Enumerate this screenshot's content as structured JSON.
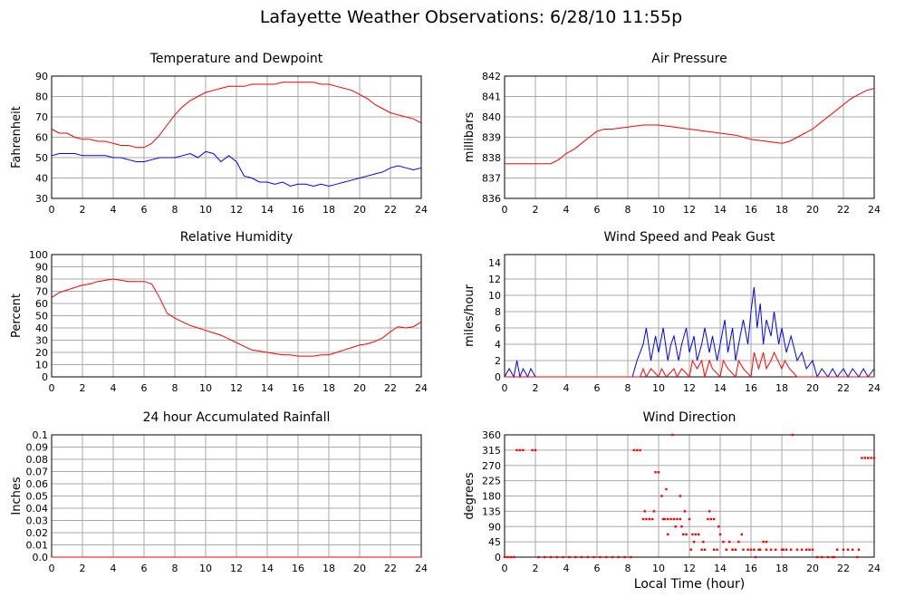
{
  "page": {
    "title": "Lafayette Weather Observations: 6/28/10 11:55p",
    "x_axis_label": "Local Time (hour)"
  },
  "colors": {
    "red": "#ff0000",
    "blue": "#0000ff",
    "grid": "#aaaaaa",
    "frame": "#000000"
  },
  "chart_data": [
    {
      "id": "temp",
      "type": "line",
      "title": "Temperature and Dewpoint",
      "xlabel": "",
      "ylabel": "Fahrenheit",
      "xlim": [
        0,
        24
      ],
      "ylim": [
        30,
        90
      ],
      "xticks": [
        0,
        2,
        4,
        6,
        8,
        10,
        12,
        14,
        16,
        18,
        20,
        22,
        24
      ],
      "yticks": [
        30,
        40,
        50,
        60,
        70,
        80,
        90
      ],
      "grid": true,
      "series": [
        {
          "color": "#ff0000",
          "x": [
            0,
            0.5,
            1,
            1.5,
            2,
            2.5,
            3,
            3.5,
            4,
            4.5,
            5,
            5.5,
            6,
            6.5,
            7,
            7.5,
            8,
            8.5,
            9,
            9.5,
            10,
            10.5,
            11,
            11.5,
            12,
            12.5,
            13,
            13.5,
            14,
            14.5,
            15,
            15.5,
            16,
            16.5,
            17,
            17.5,
            18,
            18.5,
            19,
            19.5,
            20,
            20.5,
            21,
            21.5,
            22,
            22.5,
            23,
            23.5,
            24
          ],
          "y": [
            64,
            62,
            62,
            60,
            59,
            59,
            58,
            58,
            57,
            56,
            56,
            55,
            55,
            57,
            61,
            66,
            71,
            75,
            78,
            80,
            82,
            83,
            84,
            85,
            85,
            85,
            86,
            86,
            86,
            86,
            87,
            87,
            87,
            87,
            87,
            86,
            86,
            85,
            84,
            83,
            81,
            79,
            76,
            74,
            72,
            71,
            70,
            69,
            67
          ]
        },
        {
          "color": "#0000ff",
          "x": [
            0,
            0.5,
            1,
            1.5,
            2,
            2.5,
            3,
            3.5,
            4,
            4.5,
            5,
            5.5,
            6,
            6.5,
            7,
            7.5,
            8,
            8.5,
            9,
            9.5,
            10,
            10.5,
            11,
            11.5,
            12,
            12.5,
            13,
            13.5,
            14,
            14.5,
            15,
            15.5,
            16,
            16.5,
            17,
            17.5,
            18,
            18.5,
            19,
            19.5,
            20,
            20.5,
            21,
            21.5,
            22,
            22.5,
            23,
            23.5,
            24
          ],
          "y": [
            51,
            52,
            52,
            52,
            51,
            51,
            51,
            51,
            50,
            50,
            49,
            48,
            48,
            49,
            50,
            50,
            50,
            51,
            52,
            50,
            53,
            52,
            48,
            51,
            48,
            41,
            40,
            38,
            38,
            37,
            38,
            36,
            37,
            37,
            36,
            37,
            36,
            37,
            38,
            39,
            40,
            41,
            42,
            43,
            45,
            46,
            45,
            44,
            45
          ]
        }
      ]
    },
    {
      "id": "pressure",
      "type": "line",
      "title": "Air Pressure",
      "xlabel": "",
      "ylabel": "millibars",
      "xlim": [
        0,
        24
      ],
      "ylim": [
        836,
        842
      ],
      "xticks": [
        0,
        2,
        4,
        6,
        8,
        10,
        12,
        14,
        16,
        18,
        20,
        22,
        24
      ],
      "yticks": [
        836,
        837,
        838,
        839,
        840,
        841,
        842
      ],
      "grid": true,
      "series": [
        {
          "color": "#ff0000",
          "x": [
            0,
            1,
            2,
            3,
            3.5,
            4,
            4.5,
            5,
            5.5,
            6,
            6.5,
            7,
            8,
            9,
            10,
            11,
            12,
            13,
            14,
            15,
            16,
            17,
            18,
            18.5,
            19,
            19.5,
            20,
            20.5,
            21,
            21.5,
            22,
            22.5,
            23,
            23.5,
            24
          ],
          "y": [
            837.7,
            837.7,
            837.7,
            837.7,
            837.9,
            838.2,
            838.4,
            838.7,
            839.0,
            839.3,
            839.4,
            839.4,
            839.5,
            839.6,
            839.6,
            839.5,
            839.4,
            839.3,
            839.2,
            839.1,
            838.9,
            838.8,
            838.7,
            838.8,
            839.0,
            839.2,
            839.4,
            839.7,
            840.0,
            840.3,
            840.6,
            840.9,
            841.1,
            841.3,
            841.4
          ]
        }
      ]
    },
    {
      "id": "humidity",
      "type": "line",
      "title": "Relative Humidity",
      "xlabel": "",
      "ylabel": "Percent",
      "xlim": [
        0,
        24
      ],
      "ylim": [
        0,
        100
      ],
      "xticks": [
        0,
        2,
        4,
        6,
        8,
        10,
        12,
        14,
        16,
        18,
        20,
        22,
        24
      ],
      "yticks": [
        0,
        10,
        20,
        30,
        40,
        50,
        60,
        70,
        80,
        90,
        100
      ],
      "grid": true,
      "series": [
        {
          "color": "#ff0000",
          "x": [
            0,
            0.5,
            1,
            1.5,
            2,
            2.5,
            3,
            3.5,
            4,
            4.5,
            5,
            5.5,
            6,
            6.5,
            7,
            7.5,
            8,
            8.5,
            9,
            9.5,
            10,
            10.5,
            11,
            11.5,
            12,
            12.5,
            13,
            13.5,
            14,
            14.5,
            15,
            15.5,
            16,
            16.5,
            17,
            17.5,
            18,
            18.5,
            19,
            19.5,
            20,
            20.5,
            21,
            21.5,
            22,
            22.5,
            23,
            23.5,
            24
          ],
          "y": [
            65,
            69,
            71,
            73,
            75,
            76,
            78,
            79,
            80,
            79,
            78,
            78,
            78,
            76,
            65,
            52,
            48,
            45,
            42,
            40,
            38,
            36,
            34,
            31,
            28,
            25,
            22,
            21,
            20,
            19,
            18,
            18,
            17,
            17,
            17,
            18,
            18,
            20,
            22,
            24,
            26,
            27,
            29,
            32,
            37,
            41,
            40,
            41,
            45
          ]
        }
      ]
    },
    {
      "id": "wind",
      "type": "line",
      "title": "Wind Speed and Peak Gust",
      "xlabel": "",
      "ylabel": "miles/hour",
      "xlim": [
        0,
        24
      ],
      "ylim": [
        0,
        15
      ],
      "xticks": [
        0,
        2,
        4,
        6,
        8,
        10,
        12,
        14,
        16,
        18,
        20,
        22,
        24
      ],
      "yticks": [
        0,
        2,
        4,
        6,
        8,
        10,
        12,
        14
      ],
      "grid": true,
      "series": [
        {
          "color": "#0000ff",
          "x": [
            0,
            0.3,
            0.6,
            0.8,
            1,
            1.2,
            1.5,
            1.7,
            2,
            2.2,
            8,
            8.3,
            8.6,
            9,
            9.2,
            9.5,
            9.8,
            10,
            10.3,
            10.6,
            10.8,
            11,
            11.3,
            11.5,
            11.8,
            12,
            12.3,
            12.5,
            12.8,
            13,
            13.3,
            13.5,
            13.8,
            14,
            14.3,
            14.5,
            14.8,
            15,
            15.3,
            15.5,
            15.8,
            16,
            16.2,
            16.4,
            16.6,
            16.8,
            17,
            17.3,
            17.5,
            17.8,
            18,
            18.3,
            18.6,
            19,
            19.3,
            19.6,
            20,
            20.3,
            20.6,
            21,
            21.3,
            21.6,
            22,
            22.3,
            22.6,
            23,
            23.3,
            23.6,
            24
          ],
          "y": [
            0,
            1,
            0,
            2,
            0,
            1,
            0,
            1,
            0,
            0,
            0,
            0,
            2,
            4,
            6,
            2,
            5,
            3,
            6,
            2,
            4,
            5,
            2,
            4,
            6,
            3,
            5,
            2,
            4,
            6,
            3,
            5,
            2,
            4,
            7,
            3,
            6,
            2,
            5,
            7,
            4,
            8,
            11,
            6,
            9,
            4,
            7,
            5,
            8,
            4,
            6,
            3,
            5,
            2,
            3,
            1,
            2,
            0,
            1,
            0,
            1,
            0,
            1,
            0,
            1,
            0,
            1,
            0,
            1
          ]
        },
        {
          "color": "#ff0000",
          "x": [
            0,
            8,
            8.8,
            9,
            9.2,
            9.5,
            10,
            10.2,
            10.5,
            11,
            11.2,
            11.5,
            12,
            12.2,
            12.5,
            12.8,
            13,
            13.3,
            13.5,
            14,
            14.2,
            14.5,
            15,
            15.2,
            15.5,
            16,
            16.2,
            16.5,
            16.8,
            17,
            17.3,
            17.5,
            18,
            18.2,
            18.5,
            19,
            24
          ],
          "y": [
            0,
            0,
            0,
            1,
            0,
            1,
            0,
            1,
            0,
            1,
            0,
            1,
            0,
            2,
            1,
            2,
            0,
            2,
            1,
            0,
            2,
            1,
            0,
            2,
            1,
            0,
            3,
            1,
            3,
            1,
            2,
            3,
            1,
            2,
            1,
            0,
            0
          ]
        }
      ]
    },
    {
      "id": "rain",
      "type": "line",
      "title": "24 hour Accumulated Rainfall",
      "xlabel": "",
      "ylabel": "Inches",
      "xlim": [
        0,
        24
      ],
      "ylim": [
        0,
        0.1
      ],
      "xticks": [
        0,
        2,
        4,
        6,
        8,
        10,
        12,
        14,
        16,
        18,
        20,
        22,
        24
      ],
      "yticks": [
        0.0,
        0.01,
        0.02,
        0.03,
        0.04,
        0.05,
        0.06,
        0.07,
        0.08,
        0.09,
        0.1
      ],
      "ytick_labels": [
        "0.0",
        "0.01",
        "0.02",
        "0.03",
        "0.04",
        "0.05",
        "0.06",
        "0.07",
        "0.08",
        "0.09",
        "0.1"
      ],
      "grid": true,
      "series": [
        {
          "color": "#ff0000",
          "x": [
            0,
            24
          ],
          "y": [
            0,
            0
          ]
        }
      ]
    },
    {
      "id": "direction",
      "type": "scatter",
      "title": "Wind Direction",
      "xlabel": "Local Time (hour)",
      "ylabel": "degrees",
      "xlim": [
        0,
        24
      ],
      "ylim": [
        0,
        360
      ],
      "xticks": [
        0,
        2,
        4,
        6,
        8,
        10,
        12,
        14,
        16,
        18,
        20,
        22,
        24
      ],
      "yticks": [
        0,
        45,
        90,
        135,
        180,
        225,
        270,
        315,
        360
      ],
      "grid": true,
      "series": [
        {
          "color": "#ff0000",
          "x": [
            0,
            0.2,
            0.4,
            0.6,
            0.8,
            1.0,
            1.2,
            1.8,
            2.0,
            2.2,
            2.6,
            3.0,
            3.4,
            3.8,
            4.2,
            4.6,
            5.0,
            5.4,
            5.8,
            6.2,
            6.6,
            7.0,
            7.4,
            7.8,
            8.2,
            8.4,
            8.6,
            8.8,
            9.0,
            9.2,
            9.4,
            9.6,
            9.8,
            10.0,
            10.2,
            10.4,
            10.6,
            10.8,
            11.0,
            11.2,
            11.4,
            11.6,
            11.8,
            12.0,
            12.2,
            12.4,
            12.6,
            12.8,
            13.0,
            13.2,
            13.4,
            13.6,
            13.8,
            14.0,
            14.2,
            14.4,
            14.6,
            14.8,
            15.0,
            15.2,
            15.5,
            15.8,
            16.0,
            16.2,
            16.5,
            16.8,
            17.0,
            17.3,
            17.6,
            18.0,
            18.3,
            18.6,
            19.0,
            19.3,
            19.6,
            20.0,
            20.3,
            20.6,
            21.0,
            21.3,
            21.6,
            22.0,
            22.3,
            22.6,
            23.0,
            23.2,
            23.4,
            23.6,
            23.8,
            24.0,
            10.3,
            10.6,
            11.1,
            11.4,
            11.7,
            12.3,
            12.9,
            13.6,
            14.8,
            16.3,
            18.7,
            9.1,
            9.7,
            10.9,
            13.3,
            13.9,
            17.0,
            10.5,
            11.5,
            12.1,
            15.4,
            16.6,
            18.1,
            19.8,
            21.4,
            22.9
          ],
          "y": [
            0,
            0,
            0,
            0,
            315,
            315,
            315,
            315,
            315,
            0,
            0,
            0,
            0,
            0,
            0,
            0,
            0,
            0,
            0,
            0,
            0,
            0,
            0,
            0,
            0,
            315,
            315,
            315,
            112,
            112,
            112,
            112,
            250,
            250,
            180,
            112,
            112,
            112,
            112,
            112,
            112,
            67,
            67,
            112,
            67,
            67,
            67,
            22,
            22,
            112,
            112,
            112,
            22,
            67,
            45,
            22,
            45,
            22,
            22,
            45,
            22,
            22,
            22,
            22,
            22,
            45,
            22,
            22,
            22,
            22,
            22,
            22,
            22,
            22,
            22,
            22,
            0,
            0,
            0,
            0,
            22,
            22,
            22,
            22,
            22,
            292,
            292,
            292,
            292,
            292,
            112,
            67,
            90,
            180,
            135,
            45,
            45,
            22,
            22,
            0,
            360,
            135,
            135,
            360,
            135,
            90,
            45,
            200,
            90,
            22,
            67,
            22,
            22,
            22,
            0,
            0
          ]
        }
      ]
    }
  ]
}
